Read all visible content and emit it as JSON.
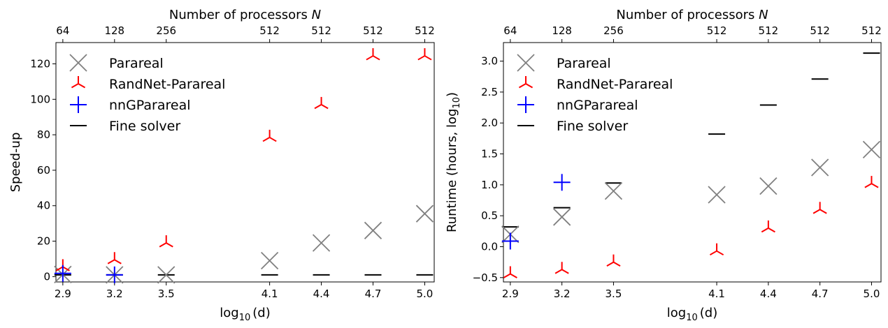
{
  "chart_data": [
    {
      "type": "scatter",
      "panel": "left",
      "xlabel_base": "log",
      "xlabel_sub": "10",
      "xlabel_rest": "(d)",
      "ylabel": "Speed-up",
      "top_axis_label": "Number of processors",
      "top_axis_symbol": "N",
      "x_ticks": [
        "2.9",
        "3.2",
        "3.5",
        "4.1",
        "4.4",
        "4.7",
        "5.0"
      ],
      "top_ticks": [
        "64",
        "128",
        "256",
        "512",
        "512",
        "512",
        "512"
      ],
      "y_ticks": [
        "0",
        "20",
        "40",
        "60",
        "80",
        "100",
        "120"
      ],
      "ylim": [
        -3,
        132
      ],
      "xlim": [
        2.86,
        5.055
      ],
      "legend_position": "upper-left",
      "series": [
        {
          "name": "Parareal",
          "marker": "x",
          "color": "#808080",
          "x": [
            2.9,
            3.2,
            3.5,
            4.1,
            4.4,
            4.7,
            5.0
          ],
          "y": [
            1.2,
            1.0,
            1.0,
            9,
            19,
            26,
            35.5
          ]
        },
        {
          "name": "RandNet-Parareal",
          "marker": "tri_up",
          "color": "#ff0000",
          "x": [
            2.9,
            3.2,
            3.5,
            4.1,
            4.4,
            4.7,
            5.0
          ],
          "y": [
            5.5,
            9.5,
            19,
            78.5,
            97,
            124.5,
            124.5
          ]
        },
        {
          "name": "nnGParareal",
          "marker": "plus",
          "color": "#0000ff",
          "x": [
            2.9,
            3.2
          ],
          "y": [
            1.8,
            1.0
          ]
        },
        {
          "name": "Fine solver",
          "marker": "hline",
          "color": "#000000",
          "x": [
            2.9,
            3.2,
            3.5,
            4.1,
            4.4,
            4.7,
            5.0
          ],
          "y": [
            1,
            1,
            1,
            1,
            1,
            1,
            1
          ]
        }
      ]
    },
    {
      "type": "scatter",
      "panel": "right",
      "xlabel_base": "log",
      "xlabel_sub": "10",
      "xlabel_rest": "(d)",
      "ylabel_text": "Runtime (hours, log",
      "ylabel_sub": "10",
      "ylabel_end": ")",
      "top_axis_label": "Number of processors",
      "top_axis_symbol": "N",
      "x_ticks": [
        "2.9",
        "3.2",
        "3.5",
        "4.1",
        "4.4",
        "4.7",
        "5.0"
      ],
      "top_ticks": [
        "64",
        "128",
        "256",
        "512",
        "512",
        "512",
        "512"
      ],
      "y_ticks": [
        "−0.5",
        "0.0",
        "0.5",
        "1.0",
        "1.5",
        "2.0",
        "2.5",
        "3.0"
      ],
      "ylim": [
        -0.57,
        3.3
      ],
      "xlim": [
        2.86,
        5.055
      ],
      "legend_position": "upper-left",
      "series": [
        {
          "name": "Parareal",
          "marker": "x",
          "color": "#808080",
          "x": [
            2.9,
            3.2,
            3.5,
            4.1,
            4.4,
            4.7,
            5.0
          ],
          "y": [
            0.2,
            0.48,
            0.9,
            0.84,
            0.98,
            1.28,
            1.57
          ]
        },
        {
          "name": "RandNet-Parareal",
          "marker": "tri_up",
          "color": "#ff0000",
          "x": [
            2.9,
            3.2,
            3.5,
            4.1,
            4.4,
            4.7,
            5.0
          ],
          "y": [
            -0.44,
            -0.37,
            -0.25,
            -0.07,
            0.3,
            0.6,
            1.02
          ]
        },
        {
          "name": "nnGParareal",
          "marker": "plus",
          "color": "#0000ff",
          "x": [
            2.9,
            3.2
          ],
          "y": [
            0.09,
            1.04
          ]
        },
        {
          "name": "Fine solver",
          "marker": "hline",
          "color": "#000000",
          "x": [
            2.9,
            3.2,
            3.5,
            4.1,
            4.4,
            4.7,
            5.0
          ],
          "y": [
            0.32,
            0.63,
            1.03,
            1.82,
            2.29,
            2.71,
            3.13
          ]
        }
      ]
    }
  ]
}
